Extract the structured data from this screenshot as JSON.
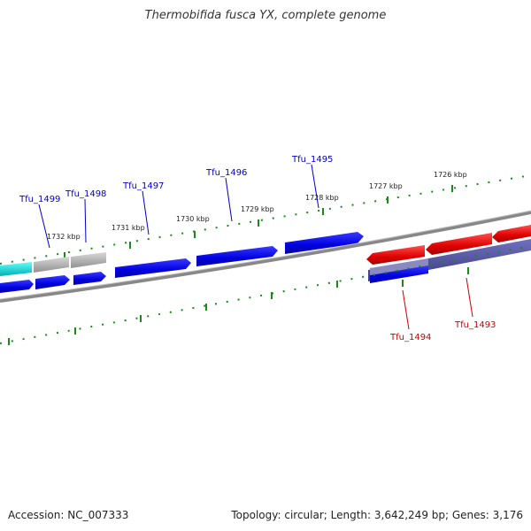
{
  "title": "Thermobifida fusca YX, complete genome",
  "accession": "Accession: NC_007333",
  "summary": "Topology: circular; Length: 3,642,249 bp; Genes: 3,176",
  "ticks": [
    "1726 kbp",
    "1727 kbp",
    "1728 kbp",
    "1729 kbp",
    "1730 kbp",
    "1731 kbp",
    "1732 kbp"
  ],
  "genes": {
    "tfu1499": "Tfu_1499",
    "tfu1498": "Tfu_1498",
    "tfu1497": "Tfu_1497",
    "tfu1496": "Tfu_1496",
    "tfu1495": "Tfu_1495",
    "tfu1494": "Tfu_1494",
    "tfu1493": "Tfu_1493"
  },
  "colors": {
    "forward_gene": "#0000e6",
    "reverse_gene": "#e60000",
    "cyan_gene": "#00d8d8",
    "gray_gene": "#b0b0b0",
    "backbone": "#888888",
    "tick": "#1a8a1a",
    "purple_band": "#4a4a9a"
  }
}
